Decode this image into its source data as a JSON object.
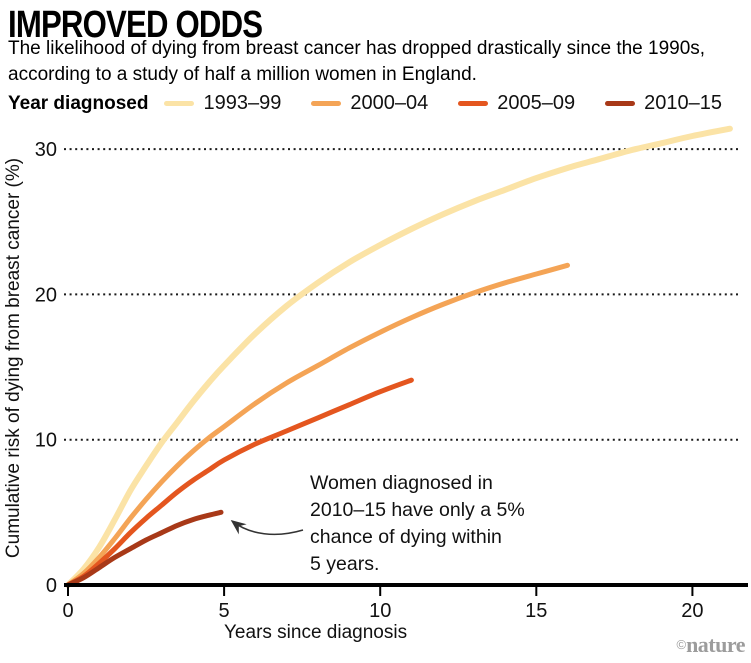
{
  "header": {
    "title": "IMPROVED ODDS",
    "subtitle_line1": "The likelihood of dying from breast cancer has dropped drastically since the 1990s,",
    "subtitle_line2": "according to a study of half a million women in England."
  },
  "legend": {
    "label": "Year diagnosed"
  },
  "annotation": {
    "lines": [
      "Women diagnosed in",
      "2010–15 have only a 5%",
      "chance of dying within",
      "5 years."
    ]
  },
  "credit": {
    "copyright": "©",
    "brand": "nature"
  },
  "chart_data": {
    "type": "line",
    "title": "IMPROVED ODDS",
    "xlabel": "Years since diagnosis",
    "ylabel": "Cumulative risk of dying from breast cancer (%)",
    "xlim": [
      0,
      21.3
    ],
    "ylim": [
      0,
      32
    ],
    "xticks": [
      0,
      5,
      10,
      15,
      20
    ],
    "yticks": [
      0,
      10,
      20,
      30
    ],
    "grid": "horizontal-dotted",
    "legend_position": "top",
    "series": [
      {
        "name": "1993–99",
        "color": "#FBE3A6",
        "points": [
          [
            0,
            0
          ],
          [
            0.5,
            1.1
          ],
          [
            1,
            2.6
          ],
          [
            1.5,
            4.5
          ],
          [
            2,
            6.5
          ],
          [
            2.5,
            8.2
          ],
          [
            3,
            9.8
          ],
          [
            3.5,
            11.2
          ],
          [
            4,
            12.6
          ],
          [
            4.5,
            13.9
          ],
          [
            5,
            15.1
          ],
          [
            6,
            17.3
          ],
          [
            7,
            19.2
          ],
          [
            8,
            20.8
          ],
          [
            9,
            22.2
          ],
          [
            10,
            23.4
          ],
          [
            11,
            24.5
          ],
          [
            12,
            25.5
          ],
          [
            13,
            26.4
          ],
          [
            14,
            27.2
          ],
          [
            15,
            28.0
          ],
          [
            16,
            28.7
          ],
          [
            17,
            29.3
          ],
          [
            18,
            29.9
          ],
          [
            19,
            30.4
          ],
          [
            20,
            30.9
          ],
          [
            21.2,
            31.4
          ]
        ]
      },
      {
        "name": "2000–04",
        "color": "#F4A456",
        "points": [
          [
            0,
            0
          ],
          [
            0.5,
            0.8
          ],
          [
            1,
            1.9
          ],
          [
            1.5,
            3.2
          ],
          [
            2,
            4.6
          ],
          [
            2.5,
            5.9
          ],
          [
            3,
            7.1
          ],
          [
            3.5,
            8.2
          ],
          [
            4,
            9.2
          ],
          [
            4.5,
            10.1
          ],
          [
            5,
            10.9
          ],
          [
            6,
            12.5
          ],
          [
            7,
            13.9
          ],
          [
            8,
            15.1
          ],
          [
            9,
            16.3
          ],
          [
            10,
            17.4
          ],
          [
            11,
            18.4
          ],
          [
            12,
            19.3
          ],
          [
            13,
            20.1
          ],
          [
            14,
            20.8
          ],
          [
            15,
            21.4
          ],
          [
            16,
            22.0
          ]
        ]
      },
      {
        "name": "2005–09",
        "color": "#E4561F",
        "points": [
          [
            0,
            0
          ],
          [
            0.5,
            0.6
          ],
          [
            1,
            1.5
          ],
          [
            1.5,
            2.5
          ],
          [
            2,
            3.6
          ],
          [
            2.5,
            4.6
          ],
          [
            3,
            5.5
          ],
          [
            3.5,
            6.4
          ],
          [
            4,
            7.2
          ],
          [
            4.5,
            7.9
          ],
          [
            5,
            8.6
          ],
          [
            6,
            9.7
          ],
          [
            7,
            10.6
          ],
          [
            8,
            11.5
          ],
          [
            9,
            12.4
          ],
          [
            10,
            13.3
          ],
          [
            11,
            14.1
          ]
        ]
      },
      {
        "name": "2010–15",
        "color": "#A83918",
        "points": [
          [
            0,
            0
          ],
          [
            0.5,
            0.5
          ],
          [
            1,
            1.2
          ],
          [
            1.5,
            1.9
          ],
          [
            2,
            2.5
          ],
          [
            2.5,
            3.1
          ],
          [
            3,
            3.6
          ],
          [
            3.5,
            4.1
          ],
          [
            4,
            4.5
          ],
          [
            4.5,
            4.8
          ],
          [
            4.9,
            5.0
          ]
        ]
      }
    ]
  }
}
